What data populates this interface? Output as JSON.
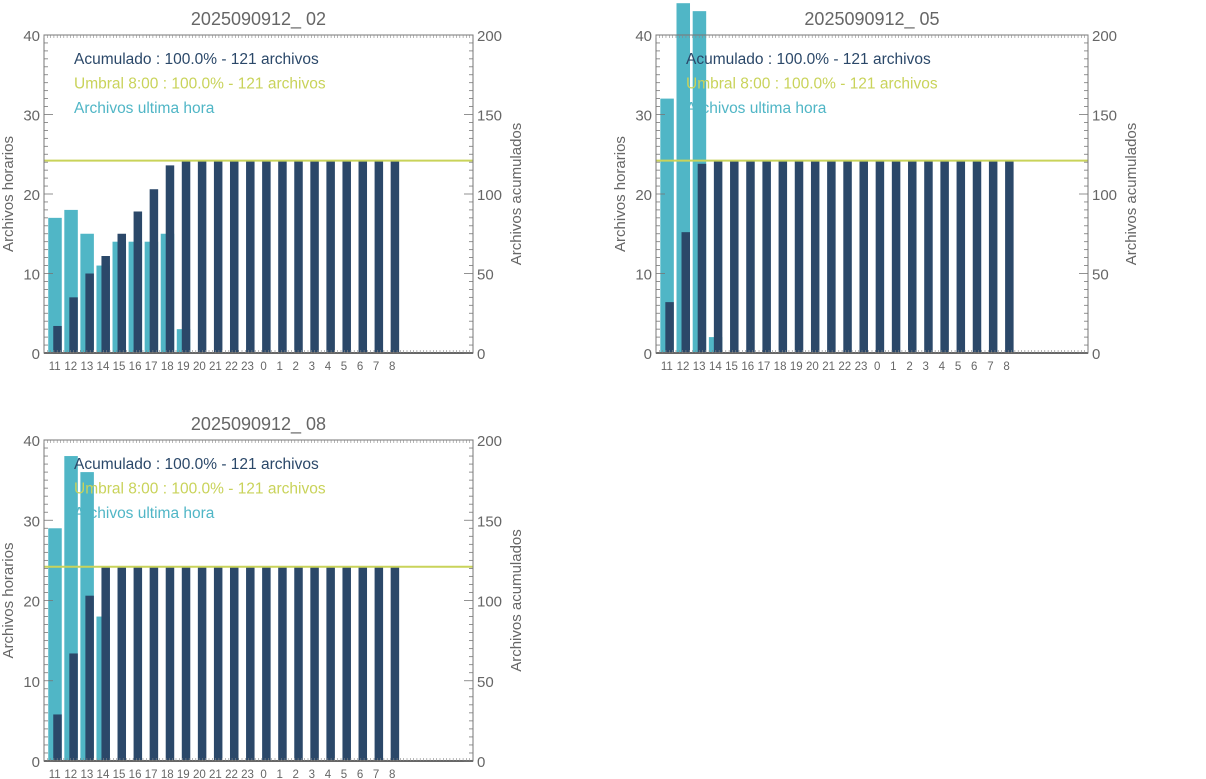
{
  "colors": {
    "accumulated": "#2b4869",
    "threshold": "#c9d35a",
    "hourly": "#50b6c6",
    "axis": "#666666"
  },
  "chart_data": [
    {
      "type": "bar",
      "title": "2025090912_ 02",
      "ylabel_left": "Archivos horarios",
      "ylabel_right": "Archivos acumulados",
      "ylim_left": [
        0,
        40
      ],
      "ylim_right": [
        0,
        200
      ],
      "yticks_left": [
        "0",
        "10",
        "20",
        "30",
        "40"
      ],
      "yticks_right": [
        "0",
        "50",
        "100",
        "150",
        "200"
      ],
      "categories": [
        "11",
        "12",
        "13",
        "14",
        "15",
        "16",
        "17",
        "18",
        "19",
        "20",
        "21",
        "22",
        "23",
        "0",
        "1",
        "2",
        "3",
        "4",
        "5",
        "6",
        "7",
        "8"
      ],
      "legend": [
        "Acumulado : 100.0% - 121 archivos",
        "Umbral 8:00 : 100.0% - 121 archivos",
        "Archivos ultima hora"
      ],
      "legend_placement": "top-left",
      "threshold": 121,
      "series": [
        {
          "name": "Archivos ultima hora",
          "axis": "left",
          "values": [
            17,
            18,
            15,
            11,
            14,
            14,
            14,
            15,
            3,
            0,
            0,
            0,
            0,
            0,
            0,
            0,
            0,
            0,
            0,
            0,
            0,
            0
          ]
        },
        {
          "name": "Acumulado",
          "axis": "right",
          "values": [
            17,
            35,
            50,
            61,
            75,
            89,
            103,
            118,
            121,
            121,
            121,
            121,
            121,
            121,
            121,
            121,
            121,
            121,
            121,
            121,
            121,
            121
          ]
        }
      ]
    },
    {
      "type": "bar",
      "title": "2025090912_ 05",
      "ylabel_left": "Archivos horarios",
      "ylabel_right": "Archivos acumulados",
      "ylim_left": [
        0,
        40
      ],
      "ylim_right": [
        0,
        200
      ],
      "yticks_left": [
        "0",
        "10",
        "20",
        "30",
        "40"
      ],
      "yticks_right": [
        "0",
        "50",
        "100",
        "150",
        "200"
      ],
      "categories": [
        "11",
        "12",
        "13",
        "14",
        "15",
        "16",
        "17",
        "18",
        "19",
        "20",
        "21",
        "22",
        "23",
        "0",
        "1",
        "2",
        "3",
        "4",
        "5",
        "6",
        "7",
        "8"
      ],
      "legend": [
        "Acumulado : 100.0% - 121 archivos",
        "Umbral 8:00 : 100.0% - 121 archivos",
        "Archivos ultima hora"
      ],
      "legend_placement": "top-left",
      "threshold": 121,
      "series": [
        {
          "name": "Archivos ultima hora",
          "axis": "left",
          "values": [
            32,
            44,
            43,
            2,
            0,
            0,
            0,
            0,
            0,
            0,
            0,
            0,
            0,
            0,
            0,
            0,
            0,
            0,
            0,
            0,
            0,
            0
          ]
        },
        {
          "name": "Acumulado",
          "axis": "right",
          "values": [
            32,
            76,
            119,
            121,
            121,
            121,
            121,
            121,
            121,
            121,
            121,
            121,
            121,
            121,
            121,
            121,
            121,
            121,
            121,
            121,
            121,
            121
          ]
        }
      ]
    },
    {
      "type": "bar",
      "title": "2025090912_ 08",
      "ylabel_left": "Archivos horarios",
      "ylabel_right": "Archivos acumulados",
      "ylim_left": [
        0,
        40
      ],
      "ylim_right": [
        0,
        200
      ],
      "yticks_left": [
        "0",
        "10",
        "20",
        "30",
        "40"
      ],
      "yticks_right": [
        "0",
        "50",
        "100",
        "150",
        "200"
      ],
      "categories": [
        "11",
        "12",
        "13",
        "14",
        "15",
        "16",
        "17",
        "18",
        "19",
        "20",
        "21",
        "22",
        "23",
        "0",
        "1",
        "2",
        "3",
        "4",
        "5",
        "6",
        "7",
        "8"
      ],
      "legend": [
        "Acumulado : 100.0% - 121 archivos",
        "Umbral 8:00 : 100.0% - 121 archivos",
        "Archivos ultima hora"
      ],
      "legend_placement": "top-left",
      "threshold": 121,
      "series": [
        {
          "name": "Archivos ultima hora",
          "axis": "left",
          "values": [
            29,
            38,
            36,
            18,
            0,
            0,
            0,
            0,
            0,
            0,
            0,
            0,
            0,
            0,
            0,
            0,
            0,
            0,
            0,
            0,
            0,
            0
          ]
        },
        {
          "name": "Acumulado",
          "axis": "right",
          "values": [
            29,
            67,
            103,
            121,
            121,
            121,
            121,
            121,
            121,
            121,
            121,
            121,
            121,
            121,
            121,
            121,
            121,
            121,
            121,
            121,
            121,
            121
          ]
        }
      ]
    }
  ]
}
